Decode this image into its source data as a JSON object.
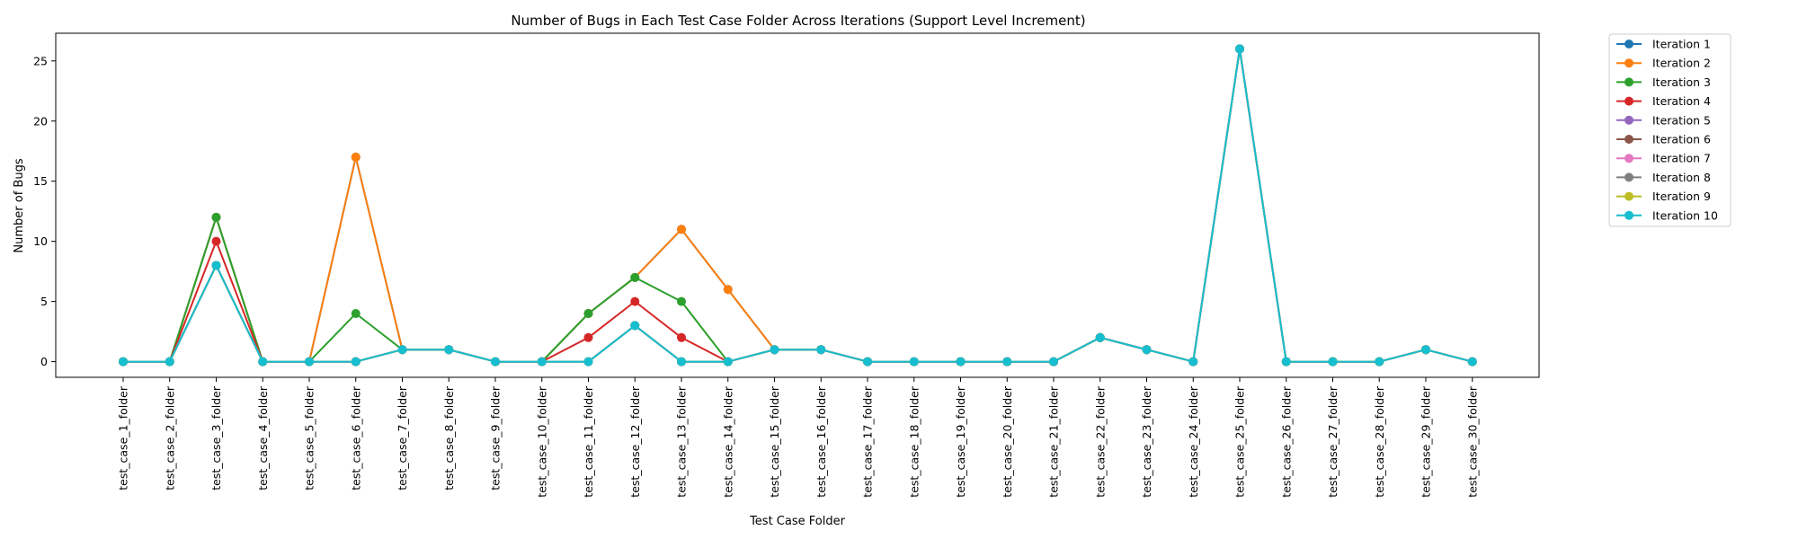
{
  "chart_data": {
    "type": "line",
    "title": "Number of Bugs in Each Test Case Folder Across Iterations (Support Level Increment)",
    "xlabel": "Test Case Folder",
    "ylabel": "Number of Bugs",
    "ylim": [
      -1.3,
      27.3
    ],
    "yticks": [
      0,
      5,
      10,
      15,
      20,
      25
    ],
    "grid": false,
    "legend_position": "outside-right-top",
    "categories": [
      "test_case_1_folder",
      "test_case_2_folder",
      "test_case_3_folder",
      "test_case_4_folder",
      "test_case_5_folder",
      "test_case_6_folder",
      "test_case_7_folder",
      "test_case_8_folder",
      "test_case_9_folder",
      "test_case_10_folder",
      "test_case_11_folder",
      "test_case_12_folder",
      "test_case_13_folder",
      "test_case_14_folder",
      "test_case_15_folder",
      "test_case_16_folder",
      "test_case_17_folder",
      "test_case_18_folder",
      "test_case_19_folder",
      "test_case_20_folder",
      "test_case_21_folder",
      "test_case_22_folder",
      "test_case_23_folder",
      "test_case_24_folder",
      "test_case_25_folder",
      "test_case_26_folder",
      "test_case_27_folder",
      "test_case_28_folder",
      "test_case_29_folder",
      "test_case_30_folder"
    ],
    "series": [
      {
        "name": "Iteration 1",
        "color": "#1f77b4",
        "values": [
          0,
          0,
          12,
          0,
          0,
          17,
          1,
          1,
          0,
          0,
          4,
          7,
          11,
          6,
          1,
          1,
          0,
          0,
          0,
          0,
          0,
          2,
          1,
          0,
          26,
          0,
          0,
          0,
          1,
          0
        ]
      },
      {
        "name": "Iteration 2",
        "color": "#ff7f0e",
        "values": [
          0,
          0,
          12,
          0,
          0,
          17,
          1,
          1,
          0,
          0,
          4,
          7,
          11,
          6,
          1,
          1,
          0,
          0,
          0,
          0,
          0,
          2,
          1,
          0,
          26,
          0,
          0,
          0,
          1,
          0
        ]
      },
      {
        "name": "Iteration 3",
        "color": "#2ca02c",
        "values": [
          0,
          0,
          12,
          0,
          0,
          4,
          1,
          1,
          0,
          0,
          4,
          7,
          5,
          0,
          1,
          1,
          0,
          0,
          0,
          0,
          0,
          2,
          1,
          0,
          26,
          0,
          0,
          0,
          1,
          0
        ]
      },
      {
        "name": "Iteration 4",
        "color": "#d62728",
        "values": [
          0,
          0,
          10,
          0,
          0,
          0,
          1,
          1,
          0,
          0,
          2,
          5,
          2,
          0,
          1,
          1,
          0,
          0,
          0,
          0,
          0,
          2,
          1,
          0,
          26,
          0,
          0,
          0,
          1,
          0
        ]
      },
      {
        "name": "Iteration 5",
        "color": "#9467bd",
        "values": [
          0,
          0,
          8,
          0,
          0,
          0,
          1,
          1,
          0,
          0,
          0,
          3,
          0,
          0,
          1,
          1,
          0,
          0,
          0,
          0,
          0,
          2,
          1,
          0,
          26,
          0,
          0,
          0,
          1,
          0
        ]
      },
      {
        "name": "Iteration 6",
        "color": "#8c564b",
        "values": [
          0,
          0,
          8,
          0,
          0,
          0,
          1,
          1,
          0,
          0,
          0,
          3,
          0,
          0,
          1,
          1,
          0,
          0,
          0,
          0,
          0,
          2,
          1,
          0,
          26,
          0,
          0,
          0,
          1,
          0
        ]
      },
      {
        "name": "Iteration 7",
        "color": "#e377c2",
        "values": [
          0,
          0,
          8,
          0,
          0,
          0,
          1,
          1,
          0,
          0,
          0,
          3,
          0,
          0,
          1,
          1,
          0,
          0,
          0,
          0,
          0,
          2,
          1,
          0,
          26,
          0,
          0,
          0,
          1,
          0
        ]
      },
      {
        "name": "Iteration 8",
        "color": "#7f7f7f",
        "values": [
          0,
          0,
          8,
          0,
          0,
          0,
          1,
          1,
          0,
          0,
          0,
          3,
          0,
          0,
          1,
          1,
          0,
          0,
          0,
          0,
          0,
          2,
          1,
          0,
          26,
          0,
          0,
          0,
          1,
          0
        ]
      },
      {
        "name": "Iteration 9",
        "color": "#bcbd22",
        "values": [
          0,
          0,
          8,
          0,
          0,
          0,
          1,
          1,
          0,
          0,
          0,
          3,
          0,
          0,
          1,
          1,
          0,
          0,
          0,
          0,
          0,
          2,
          1,
          0,
          26,
          0,
          0,
          0,
          1,
          0
        ]
      },
      {
        "name": "Iteration 10",
        "color": "#17becf",
        "values": [
          0,
          0,
          8,
          0,
          0,
          0,
          1,
          1,
          0,
          0,
          0,
          3,
          0,
          0,
          1,
          1,
          0,
          0,
          0,
          0,
          0,
          2,
          1,
          0,
          26,
          0,
          0,
          0,
          1,
          0
        ]
      }
    ]
  }
}
